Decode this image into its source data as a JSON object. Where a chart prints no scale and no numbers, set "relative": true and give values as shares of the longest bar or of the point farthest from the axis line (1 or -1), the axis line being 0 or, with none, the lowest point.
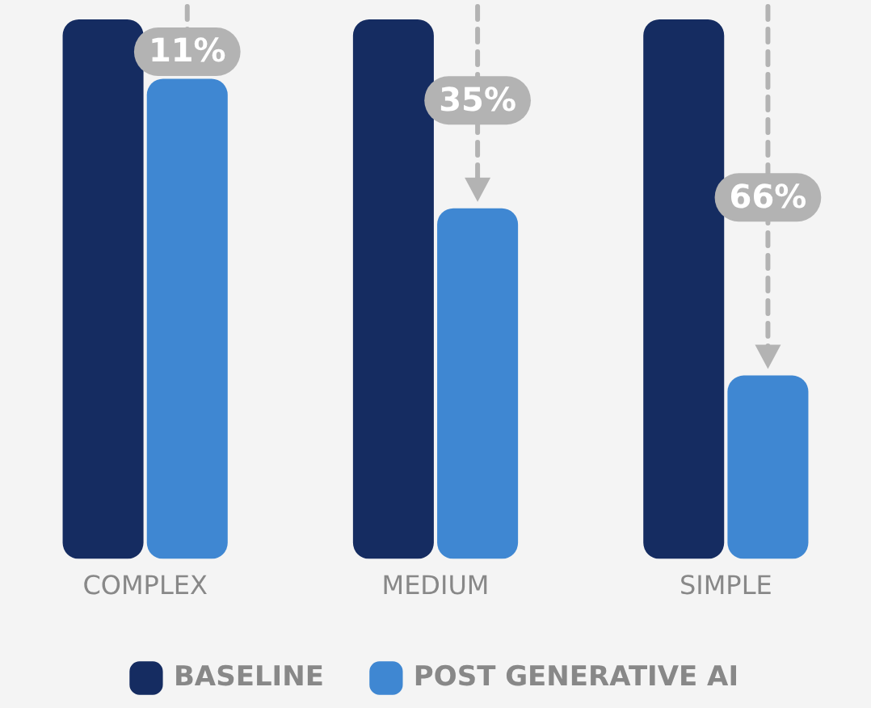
{
  "chart_data": {
    "type": "bar",
    "relative": true,
    "legend": "bottom",
    "categories": [
      "COMPLEX",
      "MEDIUM",
      "SIMPLE"
    ],
    "series": [
      {
        "name": "BASELINE",
        "color": "#152c61",
        "values": [
          1,
          1,
          1
        ]
      },
      {
        "name": "POST GENERATIVE AI",
        "color": "#3f87d2",
        "values": [
          0.89,
          0.65,
          0.34
        ]
      }
    ],
    "annotations": [
      {
        "text": "11%",
        "x": "COMPLEX",
        "y": 0.94
      },
      {
        "text": "35%",
        "x": "MEDIUM",
        "y": 0.85
      },
      {
        "text": "66%",
        "x": "SIMPLE",
        "y": 0.67
      }
    ]
  }
}
